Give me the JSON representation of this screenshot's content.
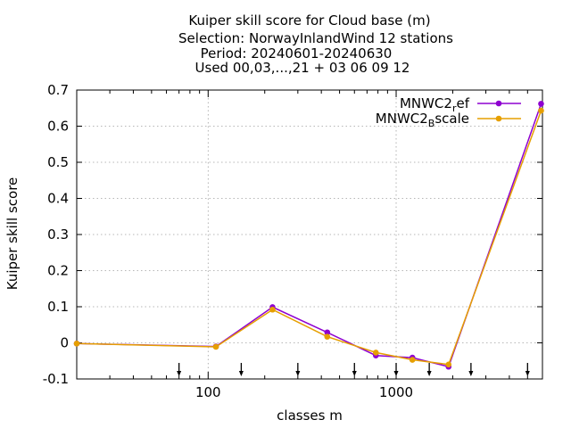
{
  "chart_data": {
    "type": "line",
    "title_lines": [
      "Kuiper skill score  for Cloud base (m)",
      "Selection: NorwayInlandWind     12 stations",
      "Period: 20240601-20240630",
      "Used 00,03,...,21 + 03 06 09 12"
    ],
    "xlabel": "classes m",
    "ylabel": "Kuiper skill score",
    "x_scale": "log",
    "xlim": [
      20,
      6000
    ],
    "ylim": [
      -0.1,
      0.7
    ],
    "y_ticks": [
      "-0.1",
      "0",
      "0.1",
      "0.2",
      "0.3",
      "0.4",
      "0.5",
      "0.6",
      "0.7"
    ],
    "x_ticks": [
      {
        "value": 100,
        "label": "100"
      },
      {
        "value": 1000,
        "label": "1000"
      }
    ],
    "class_limit_markers": [
      70,
      150,
      300,
      600,
      1000,
      1500,
      2500,
      5000
    ],
    "grid": true,
    "legend_position": "top-right",
    "series": [
      {
        "name": "MNWC2",
        "name_sub": "r",
        "name_rest": "ef",
        "color": "#8e00d0",
        "x": [
          20,
          110,
          220,
          430,
          780,
          1220,
          1900,
          5900
        ],
        "y": [
          -0.002,
          -0.01,
          0.099,
          0.029,
          -0.035,
          -0.041,
          -0.066,
          0.662
        ]
      },
      {
        "name": "MNWC2",
        "name_sub": "B",
        "name_rest": "scale",
        "color": "#e69f00",
        "x": [
          20,
          110,
          220,
          430,
          780,
          1220,
          1900,
          5900
        ],
        "y": [
          -0.002,
          -0.011,
          0.092,
          0.017,
          -0.027,
          -0.047,
          -0.06,
          0.643
        ]
      }
    ]
  }
}
